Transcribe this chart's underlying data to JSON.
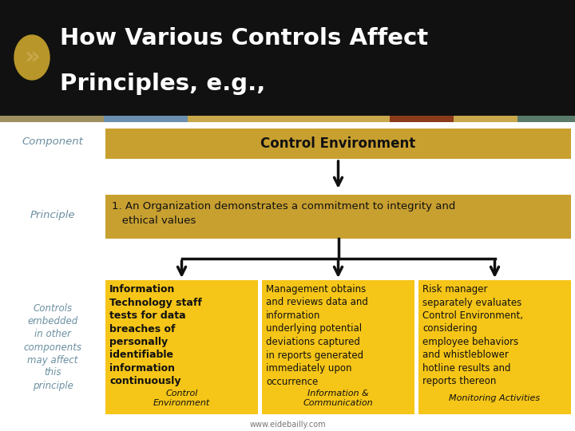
{
  "title_line1": "How Various Controls Affect",
  "title_line2": "Principles, e.g.,",
  "title_bg": "#111111",
  "title_color": "#ffffff",
  "stripe_colors": [
    "#a09070",
    "#6a8faf",
    "#c8a84b",
    "#7a3a1a",
    "#c8a84b",
    "#5a7a6a"
  ],
  "component_label": "Component",
  "principle_label": "Principle",
  "controls_label": "Controls\nembedded\nin other\ncomponents\nmay affect\nthis\nprinciple",
  "control_env_text": "Control Environment",
  "control_env_bg": "#c8a030",
  "principle_text": "1. An Organization demonstrates a commitment to integrity and\n   ethical values",
  "principle_bg": "#c8a030",
  "box1_bold": "Information\nTechnology staff\ntests for data\nbreaches of\npersonally\nidentifiable\ninformation\ncontinuously",
  "box1_italic": "Control\nEnvironment",
  "box2_text": "Management obtains\nand reviews data and\ninformation\nunderlying potential\ndeviations captured\nin reports generated\nimmediately upon\noccurrence",
  "box2_italic": "Information &\nCommunication",
  "box3_text": "Risk manager\nseparately evaluates\nControl Environment,\nconsidering\nemployee behaviors\nand whistleblower\nhotline results and\nreports thereon",
  "box3_italic": "Monitoring Activities",
  "box_bg": "#f5c518",
  "footer_text": "www.eidebailly.com",
  "footer_color": "#777777",
  "label_color": "#6a8fa0",
  "bg_color": "#ffffff"
}
